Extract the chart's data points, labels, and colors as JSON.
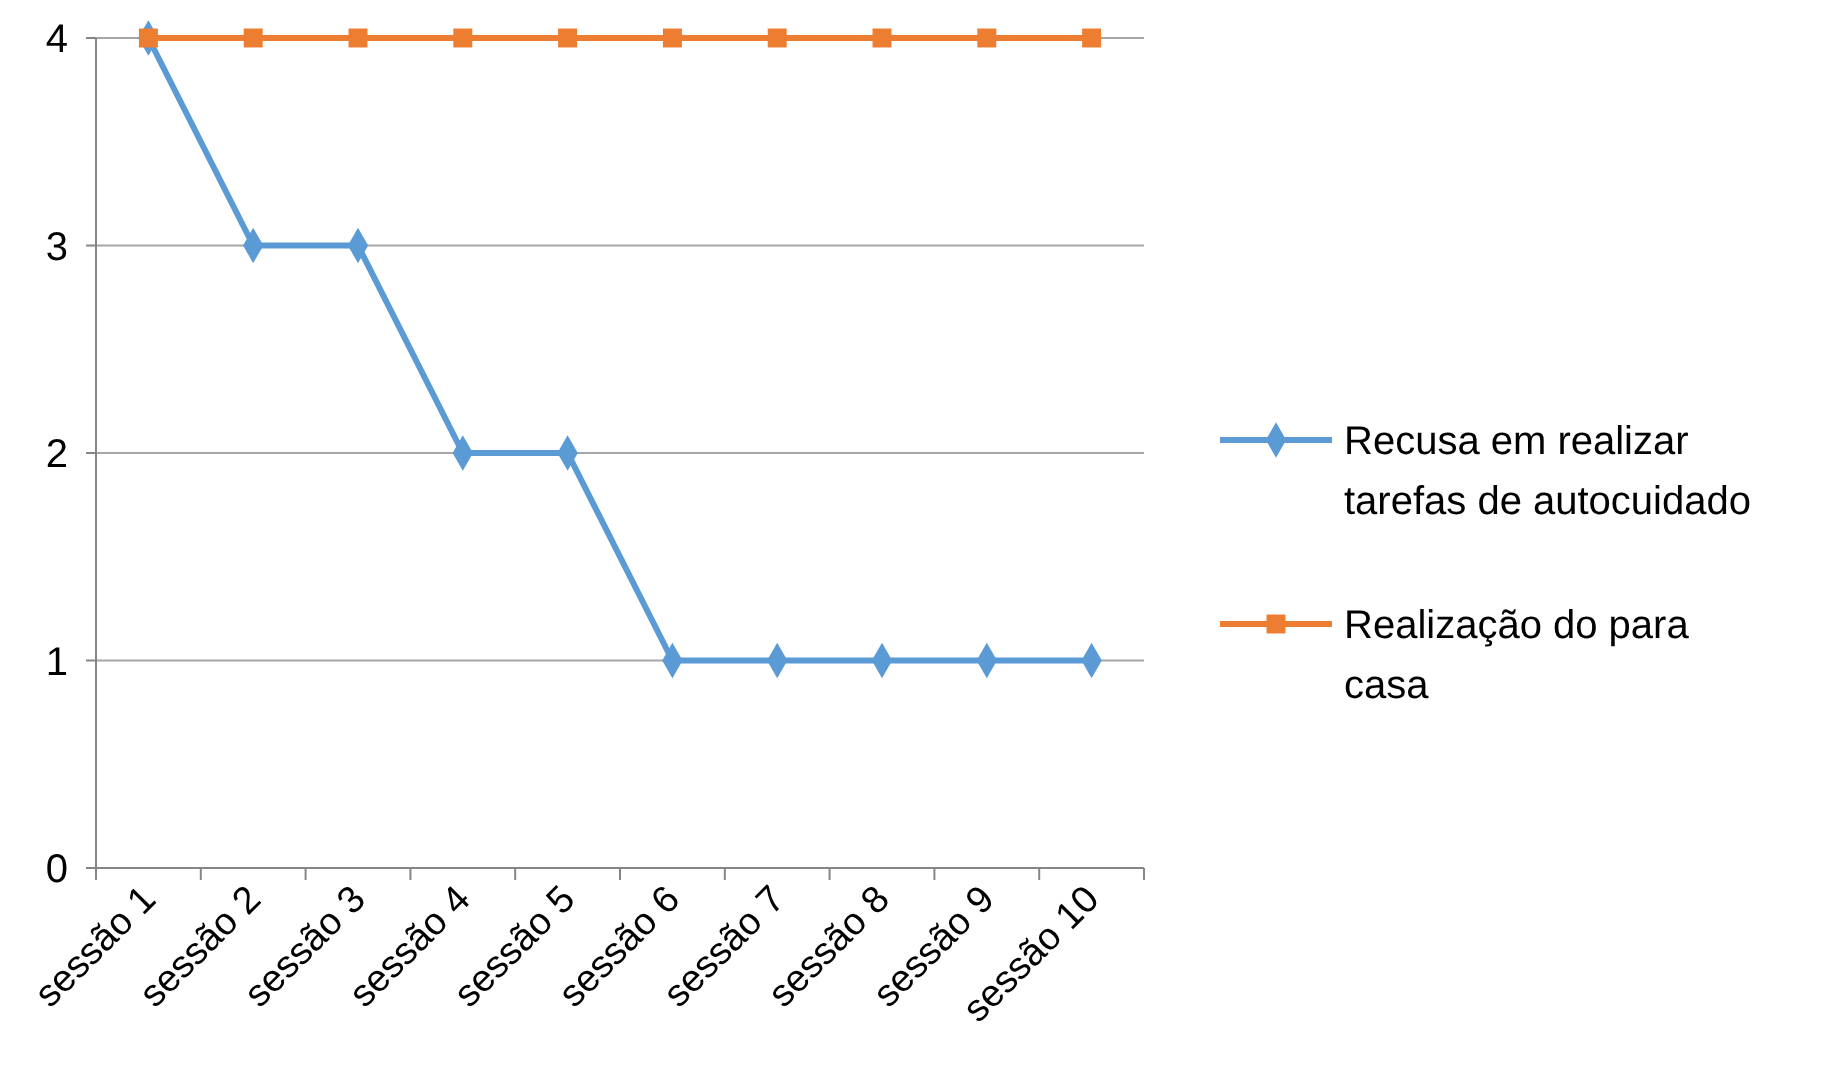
{
  "chart_data": {
    "type": "line",
    "categories": [
      "sessão 1",
      "sessão 2",
      "sessão 3",
      "sessão 4",
      "sessão 5",
      "sessão 6",
      "sessão 7",
      "sessão 8",
      "sessão 9",
      "sessão 10"
    ],
    "series": [
      {
        "name": "Recusa em realizar tarefas de autocuidado",
        "color": "#5b9bd5",
        "marker": "diamond",
        "values": [
          4,
          3,
          3,
          2,
          2,
          1,
          1,
          1,
          1,
          1
        ]
      },
      {
        "name": "Realização do para casa",
        "color": "#ed7d31",
        "marker": "square",
        "values": [
          4,
          4,
          4,
          4,
          4,
          4,
          4,
          4,
          4,
          4
        ]
      }
    ],
    "ylim": [
      0,
      4
    ],
    "yticks": [
      0,
      1,
      2,
      3,
      4
    ],
    "grid": "y",
    "legend": "right",
    "line_style": "solid"
  }
}
